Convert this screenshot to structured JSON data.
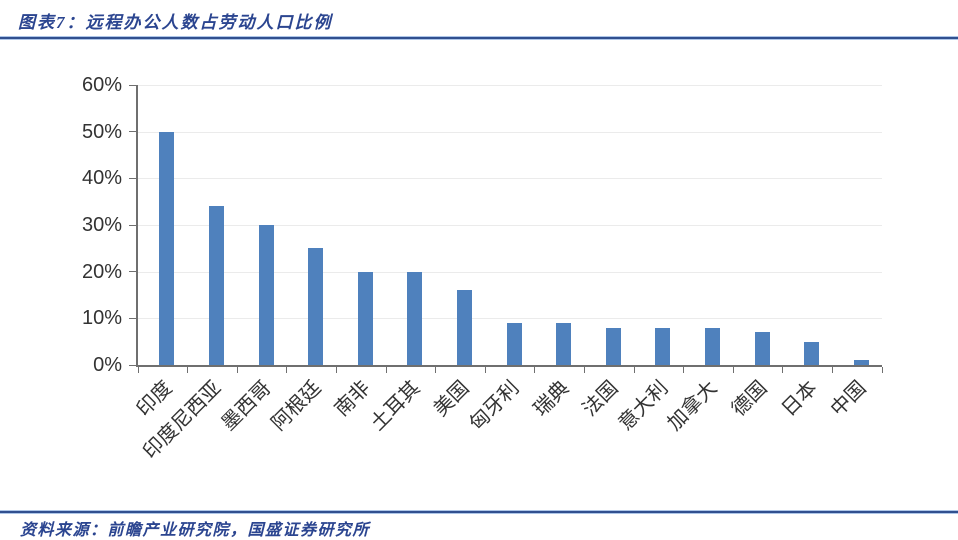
{
  "header": {
    "title": "图表7：远程办公人数占劳动人口比例"
  },
  "footer": {
    "source": "资料来源：前瞻产业研究院，国盛证券研究所"
  },
  "colors": {
    "bar": "#4F81BD",
    "accent_text": "#2B4590",
    "rule_core": "#31508F",
    "rule_glow": "#AEC6E8",
    "grid_line": "#EBEBEB",
    "axis_line": "#6F6F6F",
    "tick_label": "#333333"
  },
  "chart_data": {
    "type": "bar",
    "title": "远程办公人数占劳动人口比例",
    "categories": [
      "印度",
      "印度尼西亚",
      "墨西哥",
      "阿根廷",
      "南非",
      "土耳其",
      "美国",
      "匈牙利",
      "瑞典",
      "法国",
      "意大利",
      "加拿大",
      "德国",
      "日本",
      "中国"
    ],
    "values": [
      50,
      34,
      30,
      25,
      20,
      20,
      16,
      9,
      9,
      8,
      8,
      8,
      7,
      5,
      1
    ],
    "unit": "%",
    "xlabel": "",
    "ylabel": "",
    "ylim": [
      0,
      60
    ],
    "ytick_step": 10,
    "ytick_labels": [
      "0%",
      "10%",
      "20%",
      "30%",
      "40%",
      "50%",
      "60%"
    ],
    "grid": true,
    "legend": false,
    "bar_color": "#4F81BD"
  }
}
